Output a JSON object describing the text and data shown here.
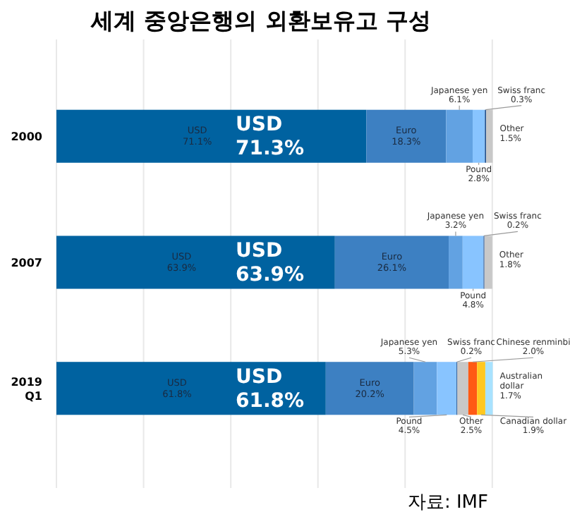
{
  "chart_data": {
    "type": "bar",
    "orientation": "horizontal",
    "stacked": true,
    "title": "세계 중앙은행의 외환보유고 구성",
    "categories": [
      "2000",
      "2007",
      "2019 Q1"
    ],
    "xlim": [
      0,
      101
    ],
    "xticks": [
      {
        "value": 0,
        "label": null
      },
      {
        "value": 20,
        "label": null
      },
      {
        "value": 40,
        "label": null
      },
      {
        "value": 60,
        "label": null
      },
      {
        "value": 80,
        "label": null
      },
      {
        "value": 100,
        "label": null
      }
    ],
    "grid": "x",
    "tick_labels": "y",
    "legend": false,
    "series": [
      {
        "name": "USD",
        "color": "#0062a0",
        "values": [
          71.1,
          63.9,
          61.8
        ],
        "value_labels": [
          "71.1%",
          "63.9%",
          "61.8%"
        ]
      },
      {
        "name": "Euro",
        "color": "#3d80c2",
        "values": [
          18.3,
          26.1,
          20.2
        ],
        "value_labels": [
          "18.3%",
          "26.1%",
          "20.2%"
        ]
      },
      {
        "name": "Japanese yen",
        "color": "#62a2e2",
        "values": [
          6.1,
          3.2,
          5.3
        ],
        "value_labels": [
          "6.1%",
          "3.2%",
          "5.3%"
        ]
      },
      {
        "name": "Pound",
        "color": "#88c4ff",
        "values": [
          2.8,
          4.8,
          4.5
        ],
        "value_labels": [
          "2.8%",
          "4.8%",
          "4.5%"
        ]
      },
      {
        "name": "Swiss franc",
        "color": "#1f4f8f",
        "values": [
          0.3,
          0.2,
          0.2
        ],
        "value_labels": [
          "0.3%",
          "0.2%",
          "0.2%"
        ]
      },
      {
        "name": "Other",
        "color": "#c8c8c8",
        "values": [
          1.5,
          1.8,
          2.5
        ],
        "value_labels": [
          "1.5%",
          "1.8%",
          "2.5%"
        ]
      },
      {
        "name": "Chinese renminbi",
        "color": "#ff5a14",
        "values": [
          null,
          null,
          2.0
        ],
        "value_labels": [
          null,
          null,
          "2.0%"
        ]
      },
      {
        "name": "Canadian dollar",
        "color": "#ffc820",
        "values": [
          null,
          null,
          1.9
        ],
        "value_labels": [
          null,
          null,
          "1.9%"
        ]
      },
      {
        "name": "Australian dollar",
        "color": "#a8e2ff",
        "values": [
          null,
          null,
          1.7
        ],
        "value_labels": [
          null,
          null,
          "1.7%"
        ]
      }
    ],
    "annotations": [
      "USD 71.3%",
      "USD 63.9%",
      "USD 61.8%",
      "자료: IMF"
    ]
  }
}
